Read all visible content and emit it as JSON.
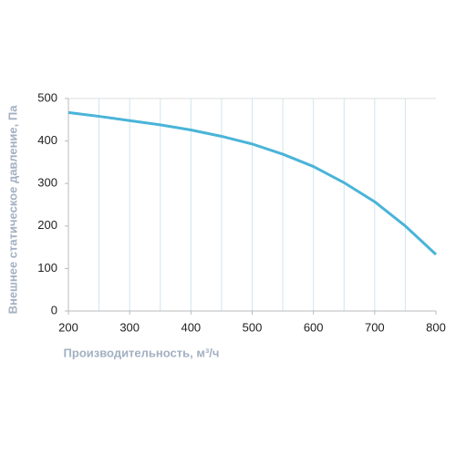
{
  "chart_data": {
    "type": "line",
    "x_label": "Производительность, м³/ч",
    "y_label": "Внешнее статическое давление, Па",
    "x": [
      200,
      250,
      300,
      350,
      400,
      450,
      500,
      550,
      600,
      650,
      700,
      750,
      800
    ],
    "series": [
      {
        "color": "#4ab4d8",
        "values": [
          467,
          458,
          448,
          438,
          426,
          411,
          393,
          369,
          340,
          302,
          257,
          200,
          133
        ]
      }
    ],
    "xlim": [
      200,
      800
    ],
    "xticks": [
      200,
      300,
      400,
      500,
      600,
      700,
      800
    ],
    "xgrid": [
      250,
      300,
      350,
      400,
      450,
      500,
      550,
      600,
      650,
      700,
      750
    ],
    "ylim": [
      0,
      500
    ],
    "yticks": [
      0,
      100,
      200,
      300,
      400,
      500
    ]
  }
}
